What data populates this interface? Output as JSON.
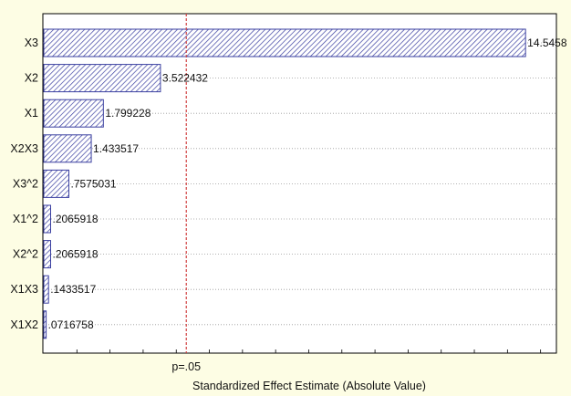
{
  "chart_data": {
    "type": "bar",
    "orientation": "horizontal",
    "title": "",
    "xlabel": "Standardized Effect Estimate (Absolute Value)",
    "ylabel": "",
    "categories": [
      "X3",
      "X2",
      "X1",
      "X2X3",
      "X3^2",
      "X1^2",
      "X2^2",
      "X1X3",
      "X1X2"
    ],
    "values": [
      14.5458,
      3.522432,
      1.799228,
      1.433517,
      0.7575031,
      0.2065918,
      0.2065918,
      0.1433517,
      0.0716758
    ],
    "value_labels": [
      "14.5458",
      "3.522432",
      "1.799228",
      "1.433517",
      ".7575031",
      ".2065918",
      ".2065918",
      ".1433517",
      ".0716758"
    ],
    "reference_line": {
      "value": 4.303,
      "label": "p=.05"
    },
    "grid": true,
    "bar_color": "#3a3fa0",
    "bar_pattern": "diagonal-hatch",
    "background_color": "#fdfde4",
    "plot_background": "#ffffff",
    "reference_line_color": "#d04040"
  }
}
